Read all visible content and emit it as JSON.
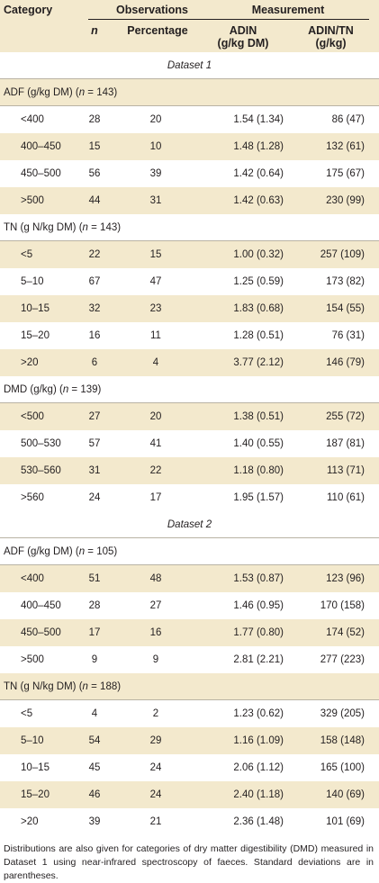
{
  "header": {
    "category": "Category",
    "observations": "Observations",
    "n": "n",
    "percentage": "Percentage",
    "measurement": "Measurement",
    "adin": "ADIN",
    "adin_unit": "(g/kg DM)",
    "adintn": "ADIN/TN",
    "adintn_unit": "(g/kg)"
  },
  "rows": [
    {
      "type": "dataset",
      "label": "Dataset 1"
    },
    {
      "type": "group",
      "name": "ADF (g/kg DM) (",
      "nsym": "n",
      "count": " = 143)"
    },
    {
      "type": "data",
      "cat": "<400",
      "n": "28",
      "pct": "20",
      "adin": "1.54 (1.34)",
      "adintn": "86 (47)"
    },
    {
      "type": "data",
      "cat": "400–450",
      "n": "15",
      "pct": "10",
      "adin": "1.48 (1.28)",
      "adintn": "132 (61)"
    },
    {
      "type": "data",
      "cat": "450–500",
      "n": "56",
      "pct": "39",
      "adin": "1.42 (0.64)",
      "adintn": "175 (67)"
    },
    {
      "type": "data",
      "cat": ">500",
      "n": "44",
      "pct": "31",
      "adin": "1.42 (0.63)",
      "adintn": "230 (99)"
    },
    {
      "type": "group",
      "name": "TN (g N/kg DM) (",
      "nsym": "n",
      "count": " = 143)"
    },
    {
      "type": "data",
      "cat": "<5",
      "n": "22",
      "pct": "15",
      "adin": "1.00 (0.32)",
      "adintn": "257 (109)"
    },
    {
      "type": "data",
      "cat": "5–10",
      "n": "67",
      "pct": "47",
      "adin": "1.25 (0.59)",
      "adintn": "173 (82)"
    },
    {
      "type": "data",
      "cat": "10–15",
      "n": "32",
      "pct": "23",
      "adin": "1.83 (0.68)",
      "adintn": "154 (55)"
    },
    {
      "type": "data",
      "cat": "15–20",
      "n": "16",
      "pct": "11",
      "adin": "1.28 (0.51)",
      "adintn": "76 (31)"
    },
    {
      "type": "data",
      "cat": ">20",
      "n": "6",
      "pct": "4",
      "adin": "3.77 (2.12)",
      "adintn": "146 (79)"
    },
    {
      "type": "group",
      "name": "DMD (g/kg) (",
      "nsym": "n",
      "count": " = 139)"
    },
    {
      "type": "data",
      "cat": "<500",
      "n": "27",
      "pct": "20",
      "adin": "1.38 (0.51)",
      "adintn": "255 (72)"
    },
    {
      "type": "data",
      "cat": "500–530",
      "n": "57",
      "pct": "41",
      "adin": "1.40 (0.55)",
      "adintn": "187 (81)"
    },
    {
      "type": "data",
      "cat": "530–560",
      "n": "31",
      "pct": "22",
      "adin": "1.18 (0.80)",
      "adintn": "113 (71)"
    },
    {
      "type": "data",
      "cat": ">560",
      "n": "24",
      "pct": "17",
      "adin": "1.95 (1.57)",
      "adintn": "110 (61)"
    },
    {
      "type": "dataset",
      "label": "Dataset 2"
    },
    {
      "type": "group",
      "name": "ADF (g/kg DM) (",
      "nsym": "n",
      "count": " = 105)"
    },
    {
      "type": "data",
      "cat": "<400",
      "n": "51",
      "pct": "48",
      "adin": "1.53 (0.87)",
      "adintn": "123 (96)"
    },
    {
      "type": "data",
      "cat": "400–450",
      "n": "28",
      "pct": "27",
      "adin": "1.46 (0.95)",
      "adintn": "170 (158)"
    },
    {
      "type": "data",
      "cat": "450–500",
      "n": "17",
      "pct": "16",
      "adin": "1.77 (0.80)",
      "adintn": "174 (52)"
    },
    {
      "type": "data",
      "cat": ">500",
      "n": "9",
      "pct": "9",
      "adin": "2.81 (2.21)",
      "adintn": "277 (223)"
    },
    {
      "type": "group",
      "name": "TN (g N/kg DM) (",
      "nsym": "n",
      "count": " = 188)"
    },
    {
      "type": "data",
      "cat": "<5",
      "n": "4",
      "pct": "2",
      "adin": "1.23 (0.62)",
      "adintn": "329 (205)"
    },
    {
      "type": "data",
      "cat": "5–10",
      "n": "54",
      "pct": "29",
      "adin": "1.16 (1.09)",
      "adintn": "158 (148)"
    },
    {
      "type": "data",
      "cat": "10–15",
      "n": "45",
      "pct": "24",
      "adin": "2.06 (1.12)",
      "adintn": "165 (100)"
    },
    {
      "type": "data",
      "cat": "15–20",
      "n": "46",
      "pct": "24",
      "adin": "2.40 (1.18)",
      "adintn": "140 (69)"
    },
    {
      "type": "data",
      "cat": ">20",
      "n": "39",
      "pct": "21",
      "adin": "2.36 (1.48)",
      "adintn": "101 (69)"
    }
  ],
  "footnote": "Distributions are also given for categories of dry matter digestibility (DMD) measured in Dataset 1 using near-infrared spectroscopy of faeces. Standard deviations are in parentheses."
}
